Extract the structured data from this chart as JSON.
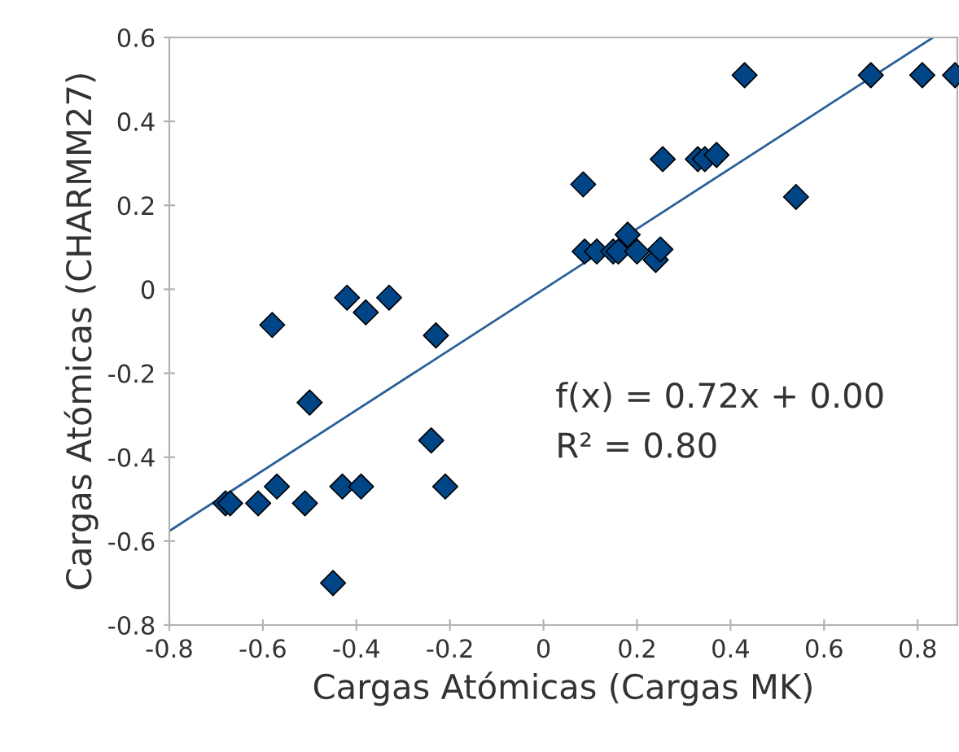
{
  "chart_data": {
    "type": "scatter",
    "xlabel": "Cargas Atómicas (Cargas MK)",
    "ylabel": "Cargas Atómicas (CHARMM27)",
    "annotations": [
      "f(x) = 0.72x + 0.00",
      "R² = 0.80"
    ],
    "marker": "diamond",
    "grid": false,
    "legend": false,
    "xlim": [
      -0.8,
      0.885
    ],
    "ylim": [
      -0.8,
      0.6
    ],
    "xticks": [
      -0.8,
      -0.6,
      -0.4,
      -0.2,
      0,
      0.2,
      0.4,
      0.6,
      0.8
    ],
    "yticks": [
      -0.8,
      -0.6,
      -0.4,
      -0.2,
      0,
      0.2,
      0.4,
      0.6
    ],
    "series": [
      {
        "color": "#004586",
        "x": [
          -0.68,
          -0.67,
          -0.61,
          -0.58,
          -0.57,
          -0.5,
          -0.51,
          -0.45,
          -0.43,
          -0.42,
          -0.38,
          -0.39,
          -0.33,
          -0.23,
          -0.24,
          -0.21,
          0.085,
          0.088,
          0.114,
          0.149,
          0.16,
          0.18,
          0.2,
          0.24,
          0.25,
          0.255,
          0.33,
          0.345,
          0.37,
          0.43,
          0.54,
          0.7,
          0.81,
          0.88
        ],
        "values": [
          -0.51,
          -0.51,
          -0.51,
          -0.085,
          -0.47,
          -0.27,
          -0.51,
          -0.7,
          -0.47,
          -0.02,
          -0.055,
          -0.47,
          -0.02,
          -0.11,
          -0.36,
          -0.47,
          0.25,
          0.09,
          0.09,
          0.09,
          0.09,
          0.13,
          0.09,
          0.07,
          0.095,
          0.31,
          0.31,
          0.31,
          0.32,
          0.51,
          0.22,
          0.51,
          0.51,
          0.51
        ]
      },
      {
        "type": "line",
        "marker": "none",
        "color": "#2a6099",
        "x": [
          -0.8,
          0.833
        ],
        "values": [
          -0.576,
          0.6
        ]
      }
    ]
  }
}
